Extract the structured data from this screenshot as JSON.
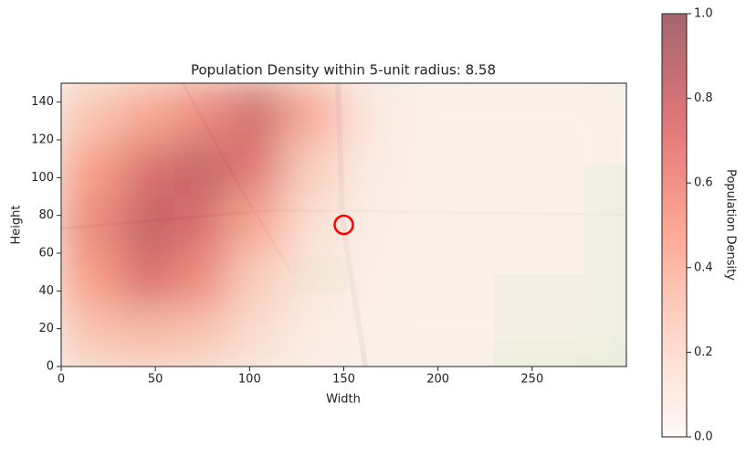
{
  "chart_data": {
    "type": "heatmap",
    "title": "Population Density within 5-unit radius: 8.58",
    "x_label": "Width",
    "y_label": "Height",
    "xlim": [
      0,
      300
    ],
    "ylim": [
      0,
      150
    ],
    "xticks": [
      0,
      50,
      100,
      150,
      200,
      250
    ],
    "yticks": [
      0,
      20,
      40,
      60,
      80,
      100,
      120,
      140
    ],
    "x": [
      15,
      45,
      75,
      105,
      135,
      165,
      195,
      225,
      255,
      285
    ],
    "y": [
      15,
      45,
      75,
      105,
      135
    ],
    "z": [
      [
        0.3,
        0.35,
        0.3,
        0.15,
        0.05,
        0.02,
        0.02,
        0.02,
        0.02,
        0.02
      ],
      [
        0.5,
        0.75,
        0.6,
        0.25,
        0.08,
        0.03,
        0.02,
        0.02,
        0.02,
        0.02
      ],
      [
        0.6,
        0.85,
        0.75,
        0.45,
        0.12,
        0.04,
        0.02,
        0.02,
        0.02,
        0.02
      ],
      [
        0.5,
        0.75,
        0.85,
        0.7,
        0.25,
        0.05,
        0.02,
        0.02,
        0.02,
        0.02
      ],
      [
        0.3,
        0.45,
        0.6,
        0.8,
        0.45,
        0.08,
        0.02,
        0.02,
        0.02,
        0.02
      ]
    ],
    "colormap": "Reds",
    "marker": {
      "x": 150,
      "y": 75,
      "color": "red"
    },
    "colorbar": {
      "label": "Population Density",
      "lim": [
        0,
        1
      ],
      "ticks": [
        {
          "value": 0,
          "label": "0.0"
        },
        {
          "value": 0.2,
          "label": "0.2"
        },
        {
          "value": 0.4,
          "label": "0.4"
        },
        {
          "value": 0.6,
          "label": "0.6"
        },
        {
          "value": 0.8,
          "label": "0.8"
        },
        {
          "value": 1,
          "label": "1.0"
        }
      ]
    }
  }
}
